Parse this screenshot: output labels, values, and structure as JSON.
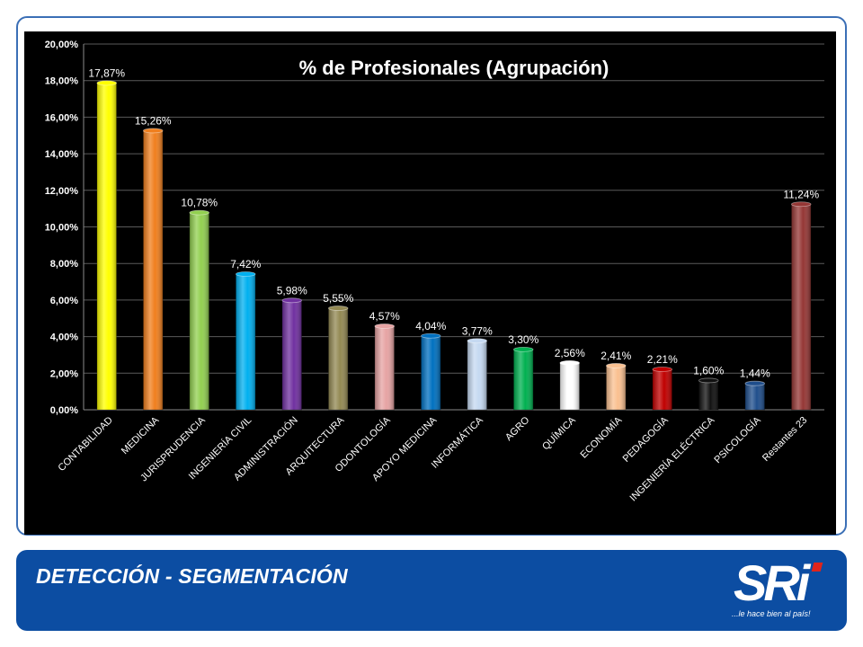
{
  "footer": {
    "title": "DETECCIÓN - SEGMENTACIÓN",
    "logo_text": "SRi",
    "logo_tagline": "...le hace bien al país!"
  },
  "chart_data": {
    "type": "bar",
    "title": "% de Profesionales (Agrupación)",
    "xlabel": "",
    "ylabel": "",
    "ylim": [
      0,
      20
    ],
    "y_ticks": [
      "0,00%",
      "2,00%",
      "4,00%",
      "6,00%",
      "8,00%",
      "10,00%",
      "12,00%",
      "14,00%",
      "16,00%",
      "18,00%",
      "20,00%"
    ],
    "grid": true,
    "legend": "none",
    "categories": [
      "CONTABILIDAD",
      "MEDICINA",
      "JURISPRUDENCIA",
      "INGENIERÍA CIVIL",
      "ADMINISTRACIÓN",
      "ARQUITECTURA",
      "ODONTOLOGÍA",
      "APOYO MEDICINA",
      "INFORMÁTICA",
      "AGRO",
      "QUÍMICA",
      "ECONOMÍA",
      "PEDAGOGÍA",
      "INGENIERÍA ELÉCTRICA",
      "PSICOLOGÍA",
      "Restantes 23"
    ],
    "values": [
      17.87,
      15.26,
      10.78,
      7.42,
      5.98,
      5.55,
      4.57,
      4.04,
      3.77,
      3.3,
      2.56,
      2.41,
      2.21,
      1.6,
      1.44,
      11.24
    ],
    "data_labels": [
      "17,87%",
      "15,26%",
      "10,78%",
      "7,42%",
      "5,98%",
      "5,55%",
      "4,57%",
      "4,04%",
      "3,77%",
      "3,30%",
      "2,56%",
      "2,41%",
      "2,21%",
      "1,60%",
      "1,44%",
      "11,24%"
    ],
    "colors": [
      "#ffff00",
      "#f07f1e",
      "#92d050",
      "#00b0f0",
      "#7030a0",
      "#938953",
      "#e6a3a3",
      "#0070c0",
      "#c5d9f1",
      "#00b050",
      "#ffffff",
      "#fac090",
      "#c00000",
      "#111111",
      "#1f4e8c",
      "#953735"
    ]
  }
}
